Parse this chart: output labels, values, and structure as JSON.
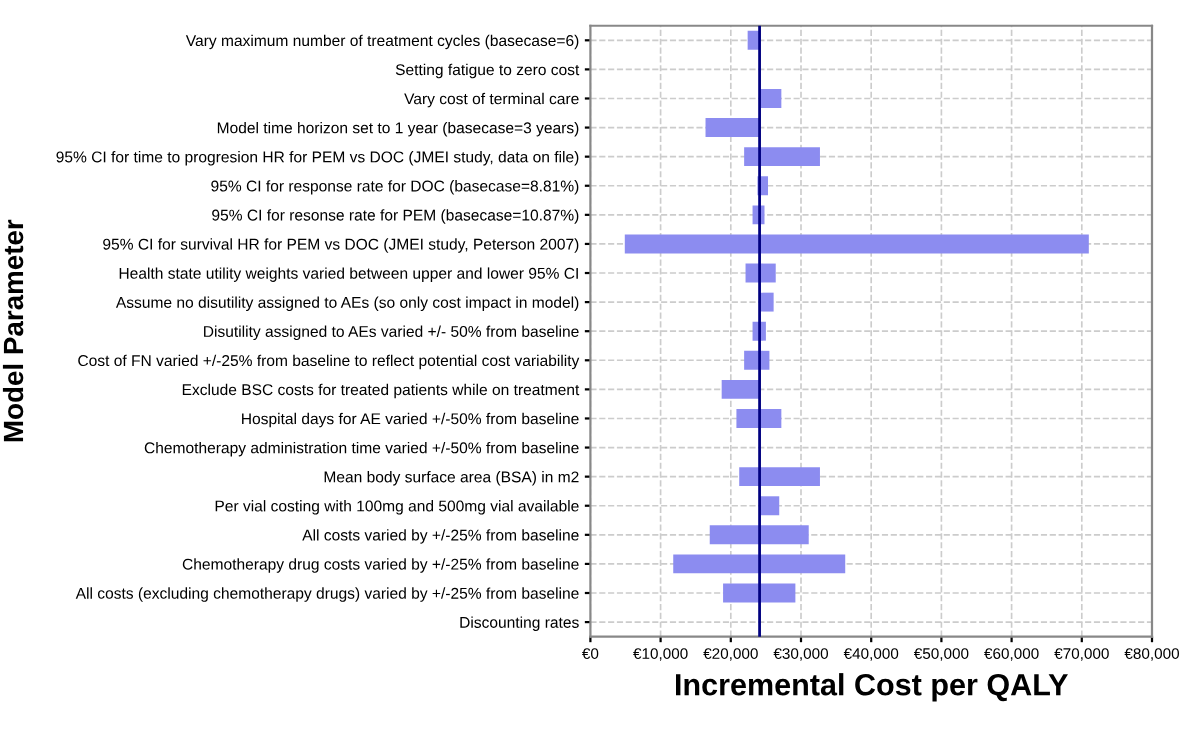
{
  "chart_data": {
    "type": "bar",
    "orientation": "horizontal",
    "xlabel": "Incremental Cost per QALY",
    "ylabel": "Model Parameter",
    "categories": [
      "Vary maximum number of treatment cycles (basecase=6)",
      "Setting fatigue to zero cost",
      "Vary cost of terminal care",
      "Model time horizon set to 1 year (basecase=3 years)",
      "95% CI for time to progresion HR for PEM vs DOC (JMEI study, data on file)",
      "95% CI for response rate for DOC (basecase=8.81%)",
      "95% CI for resonse rate for PEM (basecase=10.87%)",
      "95% CI for survival HR for PEM vs DOC (JMEI study, Peterson 2007)",
      "Health state utility weights varied between upper and lower 95% CI",
      "Assume no disutility assigned to AEs (so only cost impact in model)",
      "Disutility assigned to AEs varied +/- 50% from baseline",
      "Cost of FN varied +/-25% from baseline to reflect potential cost variability",
      "Exclude BSC costs for treated patients while on treatment",
      "Hospital days for AE varied +/-50% from baseline",
      "Chemotherapy administration time varied +/-50% from baseline",
      "Mean body surface area (BSA) in m2",
      "Per vial costing with 100mg and 500mg vial available",
      "All costs varied by +/-25% from baseline",
      "Chemotherapy drug costs varied by +/-25% from baseline",
      "All costs (excluding chemotherapy drugs) varied by +/-25% from baseline",
      "Discounting rates"
    ],
    "base": [
      22400,
      null,
      24100,
      16400,
      21900,
      23800,
      23100,
      4900,
      22100,
      24100,
      23100,
      21900,
      18700,
      20800,
      null,
      21200,
      24100,
      17000,
      11800,
      18900,
      null
    ],
    "values": [
      1700,
      null,
      3100,
      7700,
      10800,
      1500,
      1700,
      66100,
      4300,
      2000,
      1900,
      3600,
      5400,
      6400,
      null,
      11500,
      2800,
      14100,
      24500,
      10300,
      null
    ],
    "color": "#8c8cf0",
    "xlim": [
      0,
      80000
    ],
    "xticks": [
      {
        "value": 0,
        "label": "€0"
      },
      {
        "value": 10000,
        "label": "€10,000"
      },
      {
        "value": 20000,
        "label": "€20,000"
      },
      {
        "value": 30000,
        "label": "€30,000"
      },
      {
        "value": 40000,
        "label": "€40,000"
      },
      {
        "value": 50000,
        "label": "€50,000"
      },
      {
        "value": 60000,
        "label": "€60,000"
      },
      {
        "value": 70000,
        "label": "€70,000"
      },
      {
        "value": 80000,
        "label": "€80,000"
      }
    ],
    "ref_lines": [
      {
        "axis": "x",
        "value": 24100,
        "color": "#000080"
      }
    ],
    "grid": true
  }
}
